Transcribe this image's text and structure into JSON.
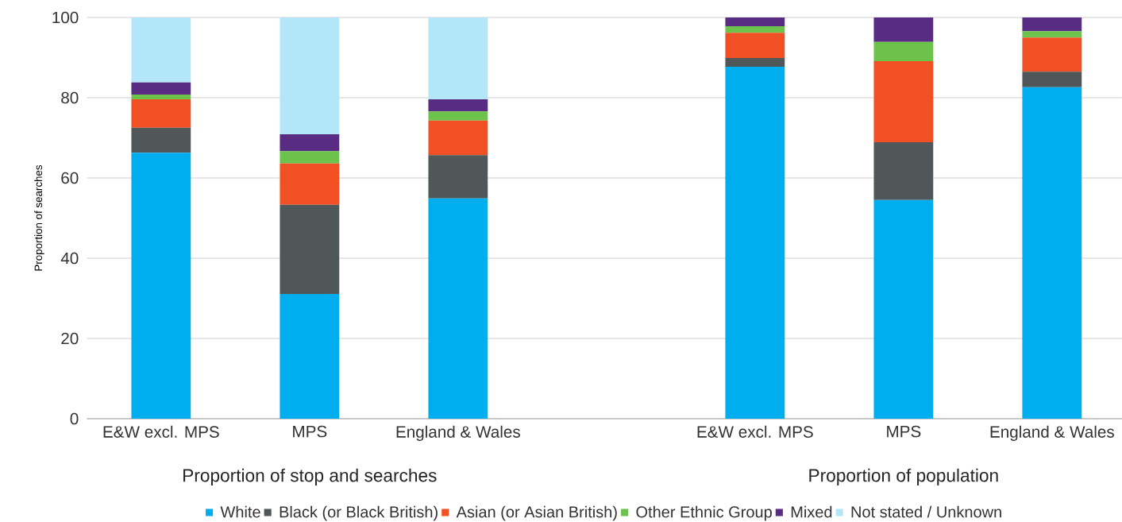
{
  "chart_data": {
    "type": "bar",
    "stacked": true,
    "ylabel": "Proportion of searches",
    "categories": [
      "E&W excl. MPS",
      "MPS",
      "England & Wales",
      null,
      "E&W excl. MPS",
      "MPS",
      "England & Wales"
    ],
    "series": [
      {
        "name": "White",
        "color": "#00aeef",
        "values": [
          66.3,
          31.1,
          54.9,
          null,
          87.7,
          54.5,
          82.6
        ]
      },
      {
        "name": "Black (or Black British)",
        "color": "#505759",
        "values": [
          6.2,
          22.2,
          10.8,
          null,
          2.2,
          14.4,
          3.9
        ]
      },
      {
        "name": "Asian (or Asian British)",
        "color": "#f05023",
        "values": [
          7.1,
          10.3,
          8.6,
          null,
          6.3,
          20.2,
          8.5
        ]
      },
      {
        "name": "Other Ethnic Group",
        "color": "#6cc24a",
        "values": [
          1.2,
          3.1,
          2.3,
          null,
          1.6,
          4.8,
          1.6
        ]
      },
      {
        "name": "Mixed",
        "color": "#582c83",
        "values": [
          3.0,
          4.2,
          3.0,
          null,
          2.2,
          6.1,
          3.4
        ]
      },
      {
        "name": "Not stated / Unknown",
        "color": "#b2e6f8",
        "values": [
          16.2,
          29.1,
          20.4,
          null,
          null,
          null,
          null
        ]
      }
    ],
    "ylim": [
      0,
      100
    ],
    "yticks": [
      0,
      20,
      40,
      60,
      80,
      100
    ],
    "grid": "y",
    "legend": "bottom",
    "annotations": [
      "Proportion of stop and searches",
      "Proportion of population"
    ]
  }
}
